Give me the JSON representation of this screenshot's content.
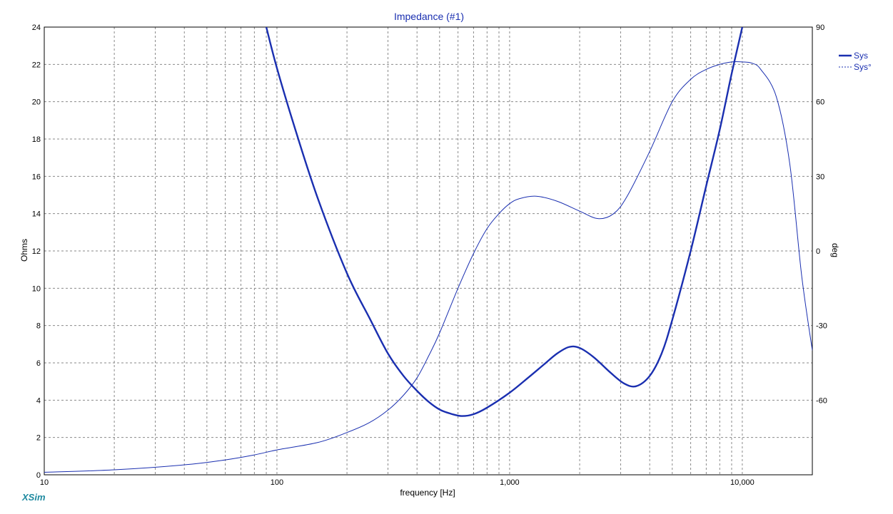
{
  "app": {
    "brand": "XSim"
  },
  "chart_data": {
    "type": "line",
    "title": "Impedance (#1)",
    "xlabel": "frequency [Hz]",
    "ylabel": "Ohms",
    "y2label": "deg",
    "x_scale": "log",
    "xlim": [
      10,
      20000
    ],
    "ylim": [
      0,
      24
    ],
    "y2lim": [
      -90,
      90
    ],
    "x_ticks": [
      {
        "value": 10,
        "label": "10"
      },
      {
        "value": 100,
        "label": "100"
      },
      {
        "value": 1000,
        "label": "1,000"
      },
      {
        "value": 10000,
        "label": "10,000"
      }
    ],
    "y_ticks": [
      0,
      2,
      4,
      6,
      8,
      10,
      12,
      14,
      16,
      18,
      20,
      22,
      24
    ],
    "y2_ticks": [
      {
        "value": 90,
        "label": "90"
      },
      {
        "value": 60,
        "label": "60"
      },
      {
        "value": 30,
        "label": "30"
      },
      {
        "value": 0,
        "label": "0"
      },
      {
        "value": -30,
        "label": "-30"
      },
      {
        "value": -60,
        "label": "-60"
      }
    ],
    "grid": true,
    "legend_position": "right",
    "series": [
      {
        "name": "Sys",
        "axis": "left",
        "style": "solid-thick",
        "color": "#1a2fb0",
        "points": [
          [
            90,
            24
          ],
          [
            100,
            21.8
          ],
          [
            120,
            18.5
          ],
          [
            150,
            14.8
          ],
          [
            200,
            10.8
          ],
          [
            250,
            8.4
          ],
          [
            300,
            6.5
          ],
          [
            350,
            5.3
          ],
          [
            400,
            4.5
          ],
          [
            450,
            3.9
          ],
          [
            500,
            3.5
          ],
          [
            550,
            3.3
          ],
          [
            620,
            3.15
          ],
          [
            700,
            3.25
          ],
          [
            800,
            3.6
          ],
          [
            1000,
            4.4
          ],
          [
            1200,
            5.2
          ],
          [
            1400,
            5.9
          ],
          [
            1600,
            6.5
          ],
          [
            1800,
            6.85
          ],
          [
            2000,
            6.8
          ],
          [
            2300,
            6.3
          ],
          [
            2700,
            5.5
          ],
          [
            3100,
            4.9
          ],
          [
            3500,
            4.75
          ],
          [
            4000,
            5.3
          ],
          [
            4500,
            6.5
          ],
          [
            5000,
            8.3
          ],
          [
            6000,
            12
          ],
          [
            7000,
            15.5
          ],
          [
            8000,
            18.5
          ],
          [
            9000,
            21.5
          ],
          [
            10000,
            24
          ]
        ]
      },
      {
        "name": "Sys°",
        "axis": "right",
        "style": "thin",
        "color": "#1a2fb0",
        "points": [
          [
            10,
            -89
          ],
          [
            20,
            -88
          ],
          [
            40,
            -86
          ],
          [
            60,
            -84
          ],
          [
            80,
            -82
          ],
          [
            100,
            -80
          ],
          [
            150,
            -77
          ],
          [
            200,
            -73
          ],
          [
            250,
            -69
          ],
          [
            300,
            -64
          ],
          [
            350,
            -58
          ],
          [
            400,
            -51
          ],
          [
            450,
            -42
          ],
          [
            500,
            -33
          ],
          [
            600,
            -15
          ],
          [
            700,
            -1
          ],
          [
            800,
            9
          ],
          [
            900,
            15
          ],
          [
            1000,
            19
          ],
          [
            1100,
            21
          ],
          [
            1300,
            22
          ],
          [
            1600,
            20
          ],
          [
            2000,
            16
          ],
          [
            2400,
            13
          ],
          [
            2800,
            15
          ],
          [
            3200,
            22
          ],
          [
            4000,
            40
          ],
          [
            5000,
            60
          ],
          [
            6000,
            69
          ],
          [
            7000,
            73
          ],
          [
            8000,
            75
          ],
          [
            9000,
            76
          ],
          [
            10000,
            76
          ],
          [
            11000,
            75.5
          ],
          [
            12000,
            73
          ],
          [
            14000,
            62
          ],
          [
            16000,
            35
          ],
          [
            18000,
            -10
          ],
          [
            20000,
            -40
          ]
        ]
      }
    ]
  }
}
